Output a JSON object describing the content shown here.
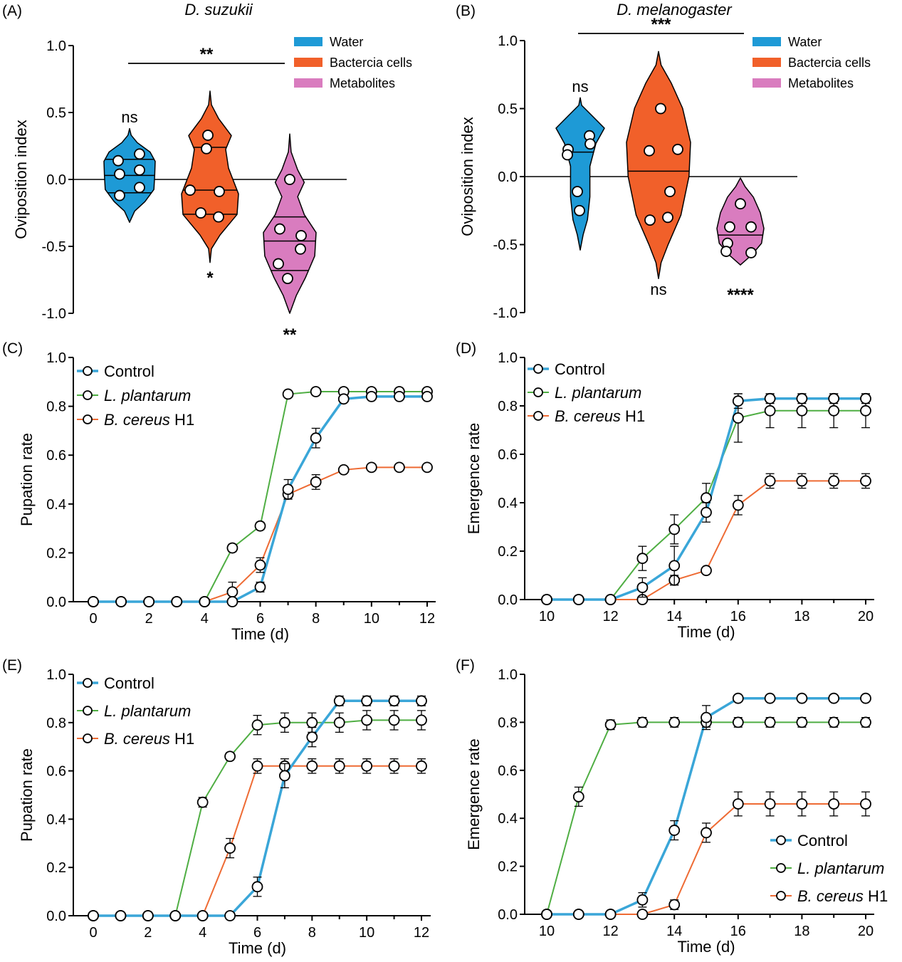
{
  "colors": {
    "water": "#1e9ad6",
    "bacteria": "#f1602a",
    "metabolites": "#d97cbf",
    "control": "#3aa6d8",
    "plantarum": "#4fae43",
    "cereus": "#ee6b34"
  },
  "chart_data": [
    {
      "panel": "(A)",
      "type": "violin",
      "title": "D. suzukii",
      "ylabel": "Oviposition index",
      "ylim": [
        -1.0,
        1.0
      ],
      "yticks": [
        "-1.0",
        "-0.5",
        "0.0",
        "0.5",
        "1.0"
      ],
      "legend": [
        "Water",
        "Bactercia cells",
        "Metabolites"
      ],
      "series": [
        {
          "name": "Water",
          "points": [
            0.19,
            0.14,
            0.07,
            0.04,
            -0.06,
            -0.12
          ],
          "quartiles": [
            -0.1,
            0.03,
            0.15
          ],
          "range": [
            -0.32,
            0.38
          ],
          "annotation": "ns"
        },
        {
          "name": "Bactercia cells",
          "points": [
            0.33,
            0.23,
            -0.08,
            -0.09,
            -0.25,
            -0.28
          ],
          "quartiles": [
            -0.26,
            -0.08,
            0.24
          ],
          "range": [
            -0.62,
            0.66
          ],
          "annotation": "*"
        },
        {
          "name": "Metabolites",
          "points": [
            0.0,
            -0.37,
            -0.42,
            -0.52,
            -0.63,
            -0.74
          ],
          "quartiles": [
            -0.68,
            -0.46,
            -0.28
          ],
          "range": [
            -1.0,
            0.34
          ],
          "annotation": "**"
        }
      ],
      "comparison": {
        "label": "**",
        "from": "Water",
        "to": "Metabolites"
      }
    },
    {
      "panel": "(B)",
      "type": "violin",
      "title": "D. melanogaster",
      "ylabel": "Oviposition index",
      "ylim": [
        -1.0,
        1.0
      ],
      "yticks": [
        "-1.0",
        "-0.5",
        "0.0",
        "0.5",
        "1.0"
      ],
      "legend": [
        "Water",
        "Bactercia cells",
        "Metabolites"
      ],
      "series": [
        {
          "name": "Water",
          "points": [
            0.3,
            0.24,
            0.2,
            0.16,
            -0.11,
            -0.25
          ],
          "quartiles": [
            0.18
          ],
          "range": [
            -0.54,
            0.58
          ],
          "annotation": "ns"
        },
        {
          "name": "Bactercia cells",
          "points": [
            0.5,
            0.2,
            0.19,
            -0.11,
            -0.32,
            -0.3
          ],
          "quartiles": [
            0.04
          ],
          "range": [
            -0.75,
            0.92
          ],
          "annotation": "ns"
        },
        {
          "name": "Metabolites",
          "points": [
            -0.2,
            -0.37,
            -0.37,
            -0.49,
            -0.56,
            -0.55
          ],
          "quartiles": [
            -0.43
          ],
          "range": [
            -0.65,
            -0.01
          ],
          "annotation": "****"
        }
      ],
      "comparison": {
        "label": "***",
        "from": "Water",
        "to": "Metabolites"
      }
    },
    {
      "panel": "(C)",
      "type": "line",
      "xlabel": "Time (d)",
      "ylabel": "Pupation rate",
      "xlim": [
        0,
        12
      ],
      "ylim": [
        0,
        1.0
      ],
      "xticks": [
        "0",
        "2",
        "4",
        "6",
        "8",
        "10",
        "12"
      ],
      "yticks": [
        "0.0",
        "0.2",
        "0.4",
        "0.6",
        "0.8",
        "1.0"
      ],
      "x": [
        0,
        1,
        2,
        3,
        4,
        5,
        6,
        7,
        8,
        9,
        10,
        11,
        12
      ],
      "series": [
        {
          "name": "Control",
          "values": [
            0,
            0,
            0,
            0,
            0,
            0,
            0.06,
            0.46,
            0.67,
            0.83,
            0.84,
            0.84,
            0.84
          ],
          "errors": [
            0,
            0,
            0,
            0,
            0,
            0,
            0.02,
            0.04,
            0.04,
            0.01,
            0.01,
            0.01,
            0.01
          ]
        },
        {
          "name": "L. plantarum",
          "values": [
            0,
            0,
            0,
            0,
            0,
            0.22,
            0.31,
            0.85,
            0.86,
            0.86,
            0.86,
            0.86,
            0.86
          ],
          "errors": [
            0,
            0,
            0,
            0,
            0,
            0.015,
            0.015,
            0.01,
            0.01,
            0.01,
            0.01,
            0.01,
            0.01
          ]
        },
        {
          "name": "B. cereus H1",
          "values": [
            0,
            0,
            0,
            0,
            0,
            0.04,
            0.15,
            0.44,
            0.49,
            0.54,
            0.55,
            0.55,
            0.55
          ],
          "errors": [
            0,
            0,
            0,
            0,
            0,
            0.04,
            0.03,
            0.02,
            0.03,
            0.01,
            0.01,
            0.01,
            0.01
          ]
        }
      ],
      "legend_position": "top-left"
    },
    {
      "panel": "(D)",
      "type": "line",
      "xlabel": "Time (d)",
      "ylabel": "Emergence rate",
      "xlim": [
        9.2,
        20.5
      ],
      "ylim": [
        0,
        1.0
      ],
      "xticks": [
        "10",
        "12",
        "14",
        "16",
        "18",
        "20"
      ],
      "yticks": [
        "0.0",
        "0.2",
        "0.4",
        "0.6",
        "0.8",
        "1.0"
      ],
      "x": [
        10,
        11,
        12,
        13,
        14,
        15,
        16,
        17,
        18,
        19,
        20
      ],
      "series": [
        {
          "name": "Control",
          "values": [
            0,
            0,
            0,
            0.05,
            0.14,
            0.36,
            0.82,
            0.83,
            0.83,
            0.83,
            0.83
          ],
          "errors": [
            0,
            0,
            0,
            0.04,
            0.08,
            0.04,
            0.03,
            0.02,
            0.02,
            0.02,
            0.02
          ]
        },
        {
          "name": "L. plantarum",
          "values": [
            0,
            0,
            0,
            0.17,
            0.29,
            0.42,
            0.75,
            0.78,
            0.78,
            0.78,
            0.78
          ],
          "errors": [
            0,
            0,
            0,
            0.05,
            0.06,
            0.06,
            0.1,
            0.07,
            0.07,
            0.07,
            0.07
          ]
        },
        {
          "name": "B. cereus H1",
          "values": [
            0,
            0,
            0,
            0,
            0.08,
            0.12,
            0.39,
            0.49,
            0.49,
            0.49,
            0.49
          ],
          "errors": [
            0,
            0,
            0,
            0,
            0.02,
            0.01,
            0.04,
            0.03,
            0.03,
            0.03,
            0.03
          ]
        }
      ],
      "legend_position": "top-left"
    },
    {
      "panel": "(E)",
      "type": "line",
      "xlabel": "Time (d)",
      "ylabel": "Pupation rate",
      "xlim": [
        0,
        12
      ],
      "ylim": [
        0,
        1.0
      ],
      "xticks": [
        "0",
        "2",
        "4",
        "6",
        "8",
        "10",
        "12"
      ],
      "yticks": [
        "0.0",
        "0.2",
        "0.4",
        "0.6",
        "0.8",
        "1.0"
      ],
      "x": [
        0,
        1,
        2,
        3,
        4,
        5,
        6,
        7,
        8,
        9,
        10,
        11,
        12
      ],
      "series": [
        {
          "name": "Control",
          "values": [
            0,
            0,
            0,
            0,
            0,
            0,
            0.12,
            0.58,
            0.74,
            0.89,
            0.89,
            0.89,
            0.89
          ],
          "errors": [
            0,
            0,
            0,
            0,
            0,
            0,
            0.04,
            0.05,
            0.04,
            0.02,
            0.02,
            0.02,
            0.02
          ]
        },
        {
          "name": "L. plantarum",
          "values": [
            0,
            0,
            0,
            0,
            0.47,
            0.66,
            0.79,
            0.8,
            0.8,
            0.8,
            0.81,
            0.81,
            0.81
          ],
          "errors": [
            0,
            0,
            0,
            0,
            0.02,
            0.015,
            0.04,
            0.04,
            0.04,
            0.04,
            0.04,
            0.04,
            0.04
          ]
        },
        {
          "name": "B. cereus H1",
          "values": [
            0,
            0,
            0,
            0,
            0,
            0.28,
            0.62,
            0.62,
            0.62,
            0.62,
            0.62,
            0.62,
            0.62
          ],
          "errors": [
            0,
            0,
            0,
            0,
            0,
            0.04,
            0.03,
            0.03,
            0.03,
            0.03,
            0.03,
            0.03,
            0.03
          ]
        }
      ],
      "legend_position": "top-left"
    },
    {
      "panel": "(F)",
      "type": "line",
      "xlabel": "Time (d)",
      "ylabel": "Emergence rate",
      "xlim": [
        9.2,
        20.5
      ],
      "ylim": [
        0,
        1.0
      ],
      "xticks": [
        "10",
        "12",
        "14",
        "16",
        "18",
        "20"
      ],
      "yticks": [
        "0.0",
        "0.2",
        "0.4",
        "0.6",
        "0.8",
        "1.0"
      ],
      "x": [
        10,
        11,
        12,
        13,
        14,
        15,
        16,
        17,
        18,
        19,
        20
      ],
      "series": [
        {
          "name": "Control",
          "values": [
            0,
            0,
            0,
            0.06,
            0.35,
            0.82,
            0.9,
            0.9,
            0.9,
            0.9,
            0.9
          ],
          "errors": [
            0,
            0,
            0,
            0.03,
            0.04,
            0.05,
            0.01,
            0.01,
            0.01,
            0.01,
            0.01
          ]
        },
        {
          "name": "L. plantarum",
          "values": [
            0,
            0.49,
            0.79,
            0.8,
            0.8,
            0.8,
            0.8,
            0.8,
            0.8,
            0.8,
            0.8
          ],
          "errors": [
            0,
            0.04,
            0.02,
            0.02,
            0.02,
            0.02,
            0.02,
            0.02,
            0.02,
            0.02,
            0.02
          ]
        },
        {
          "name": "B. cereus H1",
          "values": [
            0,
            0,
            0,
            0,
            0.04,
            0.34,
            0.46,
            0.46,
            0.46,
            0.46,
            0.46
          ],
          "errors": [
            0,
            0,
            0,
            0,
            0.02,
            0.04,
            0.05,
            0.05,
            0.05,
            0.05,
            0.05
          ]
        }
      ],
      "legend_position": "bottom-right"
    }
  ]
}
